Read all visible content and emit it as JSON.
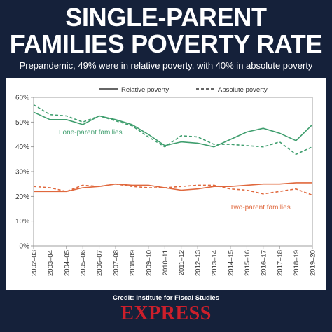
{
  "header": {
    "title_line_1": "SINGLE-PARENT",
    "title_line_2": "FAMILIES POVERTY RATE",
    "subtitle": "Prepandemic, 49% were in relative poverty, with 40% in absolute poverty"
  },
  "footer": {
    "credit": "Credit: Institute for Fiscal Studies",
    "brand": "EXPRESS"
  },
  "colors": {
    "background": "#15213a",
    "lone_parent": "#3f9e6e",
    "two_parent": "#e0683d",
    "brand": "#cc1f2b"
  },
  "chart_data": {
    "type": "line",
    "title": "",
    "xlabel": "",
    "ylabel": "",
    "ylim": [
      0,
      60
    ],
    "yticks": [
      "0%",
      "10%",
      "20%",
      "30%",
      "40%",
      "50%",
      "60%"
    ],
    "grid": false,
    "legend_placement": "top-center",
    "legend": [
      {
        "label": "Relative poverty",
        "style": "solid"
      },
      {
        "label": "Absolute poverty",
        "style": "dashed"
      }
    ],
    "categories": [
      "2002–03",
      "2003–04",
      "2004–05",
      "2005–06",
      "2006–07",
      "2007–08",
      "2008–09",
      "2009–10",
      "2010–11",
      "2011–12",
      "2012–13",
      "2013–14",
      "2014–15",
      "2015–16",
      "2016–17",
      "2017–18",
      "2018–19",
      "2019–20"
    ],
    "annotations": [
      {
        "text": "Lone-parent families",
        "color": "#3f9e6e"
      },
      {
        "text": "Two-parent families",
        "color": "#e0683d"
      }
    ],
    "series": [
      {
        "group": "lone",
        "style": "solid",
        "color": "#3f9e6e",
        "values": [
          54,
          51,
          51,
          49,
          52.5,
          51,
          49,
          45,
          40.5,
          42,
          41.5,
          40,
          43,
          46,
          47.5,
          45.5,
          42.5,
          49
        ]
      },
      {
        "group": "lone",
        "style": "dashed",
        "color": "#3f9e6e",
        "values": [
          57,
          53,
          52.5,
          50,
          52.5,
          50.5,
          48.5,
          44,
          40,
          44.5,
          44,
          41,
          41,
          40.5,
          40,
          42,
          37,
          40
        ]
      },
      {
        "group": "two",
        "style": "solid",
        "color": "#e0683d",
        "values": [
          22,
          22,
          22,
          23.5,
          24,
          25,
          24.5,
          24.5,
          23.5,
          22.5,
          23,
          24,
          24,
          24.5,
          25,
          25,
          25.5,
          25.5
        ]
      },
      {
        "group": "two",
        "style": "dashed",
        "color": "#e0683d",
        "values": [
          24,
          23.5,
          22,
          24.5,
          24,
          25,
          24,
          23.5,
          23.5,
          24,
          24.5,
          24.5,
          23,
          22.5,
          21,
          22,
          23,
          20.5
        ]
      }
    ]
  }
}
